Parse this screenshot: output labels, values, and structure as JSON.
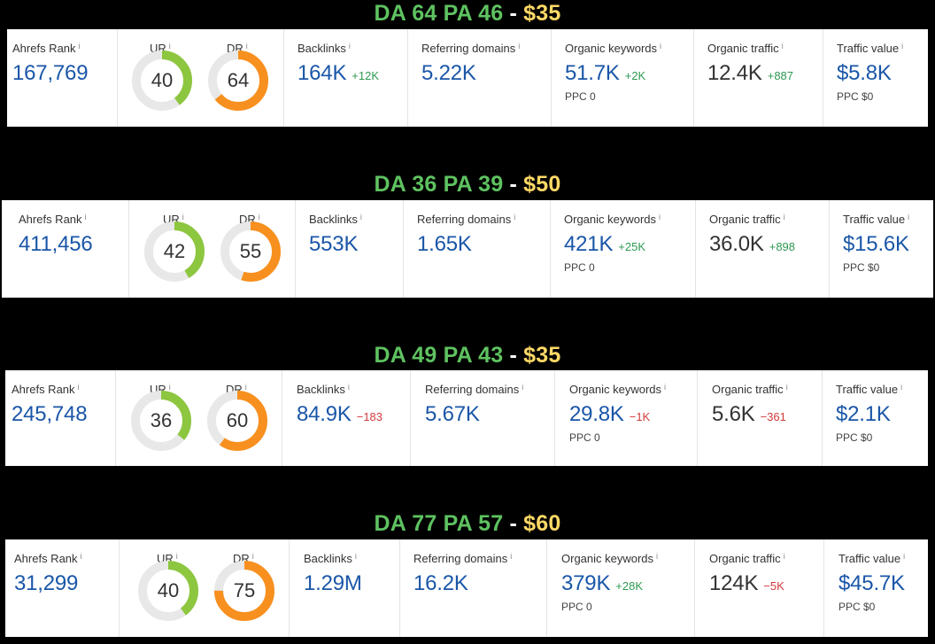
{
  "listings": [
    {
      "header": {
        "da_pa": "DA 64 PA 46",
        "separator": "-",
        "price": "$35"
      },
      "metrics": {
        "ahrefs_rank": {
          "label": "Ahrefs Rank",
          "info": "i",
          "value": "167,769"
        },
        "ur": {
          "label": "UR",
          "info": "i",
          "value": "40",
          "fraction": 0.4
        },
        "dr": {
          "label": "DR",
          "info": "i",
          "value": "64",
          "fraction": 0.64
        },
        "backlinks": {
          "label": "Backlinks",
          "info": "i",
          "value": "164K",
          "delta": "+12K"
        },
        "referring_domains": {
          "label": "Referring domains",
          "info": "i",
          "value": "5.22K"
        },
        "organic_keywords": {
          "label": "Organic keywords",
          "info": "i",
          "value": "51.7K",
          "delta": "+2K",
          "sub": "PPC 0"
        },
        "organic_traffic": {
          "label": "Organic traffic",
          "info": "i",
          "value": "12.4K",
          "delta": "+887"
        },
        "traffic_value": {
          "label": "Traffic value",
          "info": "i",
          "value": "$5.8K",
          "sub": "PPC $0"
        }
      }
    },
    {
      "header": {
        "da_pa": "DA 36 PA 39",
        "separator": "-",
        "price": "$50"
      },
      "metrics": {
        "ahrefs_rank": {
          "label": "Ahrefs Rank",
          "info": "i",
          "value": "411,456"
        },
        "ur": {
          "label": "UR",
          "info": "i",
          "value": "42",
          "fraction": 0.42
        },
        "dr": {
          "label": "DR",
          "info": "i",
          "value": "55",
          "fraction": 0.55
        },
        "backlinks": {
          "label": "Backlinks",
          "info": "i",
          "value": "553K",
          "delta": ""
        },
        "referring_domains": {
          "label": "Referring domains",
          "info": "i",
          "value": "1.65K"
        },
        "organic_keywords": {
          "label": "Organic keywords",
          "info": "i",
          "value": "421K",
          "delta": "+25K",
          "sub": "PPC 0"
        },
        "organic_traffic": {
          "label": "Organic traffic",
          "info": "i",
          "value": "36.0K",
          "delta": "+898"
        },
        "traffic_value": {
          "label": "Traffic value",
          "info": "i",
          "value": "$15.6K",
          "sub": "PPC $0"
        }
      }
    },
    {
      "header": {
        "da_pa": "DA 49 PA 43",
        "separator": "-",
        "price": "$35"
      },
      "metrics": {
        "ahrefs_rank": {
          "label": "Ahrefs Rank",
          "info": "i",
          "value": "245,748"
        },
        "ur": {
          "label": "UR",
          "info": "i",
          "value": "36",
          "fraction": 0.36
        },
        "dr": {
          "label": "DR",
          "info": "i",
          "value": "60",
          "fraction": 0.6
        },
        "backlinks": {
          "label": "Backlinks",
          "info": "i",
          "value": "84.9K",
          "delta": "−183"
        },
        "referring_domains": {
          "label": "Referring domains",
          "info": "i",
          "value": "5.67K"
        },
        "organic_keywords": {
          "label": "Organic keywords",
          "info": "i",
          "value": "29.8K",
          "delta": "−1K",
          "sub": "PPC 0"
        },
        "organic_traffic": {
          "label": "Organic traffic",
          "info": "i",
          "value": "5.6K",
          "delta": "−361"
        },
        "traffic_value": {
          "label": "Traffic value",
          "info": "i",
          "value": "$2.1K",
          "sub": "PPC $0"
        }
      }
    },
    {
      "header": {
        "da_pa": "DA 77 PA 57",
        "separator": "-",
        "price": "$60"
      },
      "metrics": {
        "ahrefs_rank": {
          "label": "Ahrefs Rank",
          "info": "i",
          "value": "31,299"
        },
        "ur": {
          "label": "UR",
          "info": "i",
          "value": "40",
          "fraction": 0.4
        },
        "dr": {
          "label": "DR",
          "info": "i",
          "value": "75",
          "fraction": 0.75
        },
        "backlinks": {
          "label": "Backlinks",
          "info": "i",
          "value": "1.29M",
          "delta": ""
        },
        "referring_domains": {
          "label": "Referring domains",
          "info": "i",
          "value": "16.2K"
        },
        "organic_keywords": {
          "label": "Organic keywords",
          "info": "i",
          "value": "379K",
          "delta": "+28K",
          "sub": "PPC 0"
        },
        "organic_traffic": {
          "label": "Organic traffic",
          "info": "i",
          "value": "124K",
          "delta": "−5K"
        },
        "traffic_value": {
          "label": "Traffic value",
          "info": "i",
          "value": "$45.7K",
          "sub": "PPC $0"
        }
      }
    }
  ],
  "colors": {
    "background": "#000000",
    "da_pa_text": "#5ec260",
    "price_text": "#ffd966",
    "value_blue": "#1a56a8",
    "delta_up": "#2e9a52",
    "delta_down": "#d23b3b",
    "ur_gauge": "#8dc63f",
    "dr_gauge": "#f7901e",
    "gauge_track": "#e8e8e8"
  }
}
